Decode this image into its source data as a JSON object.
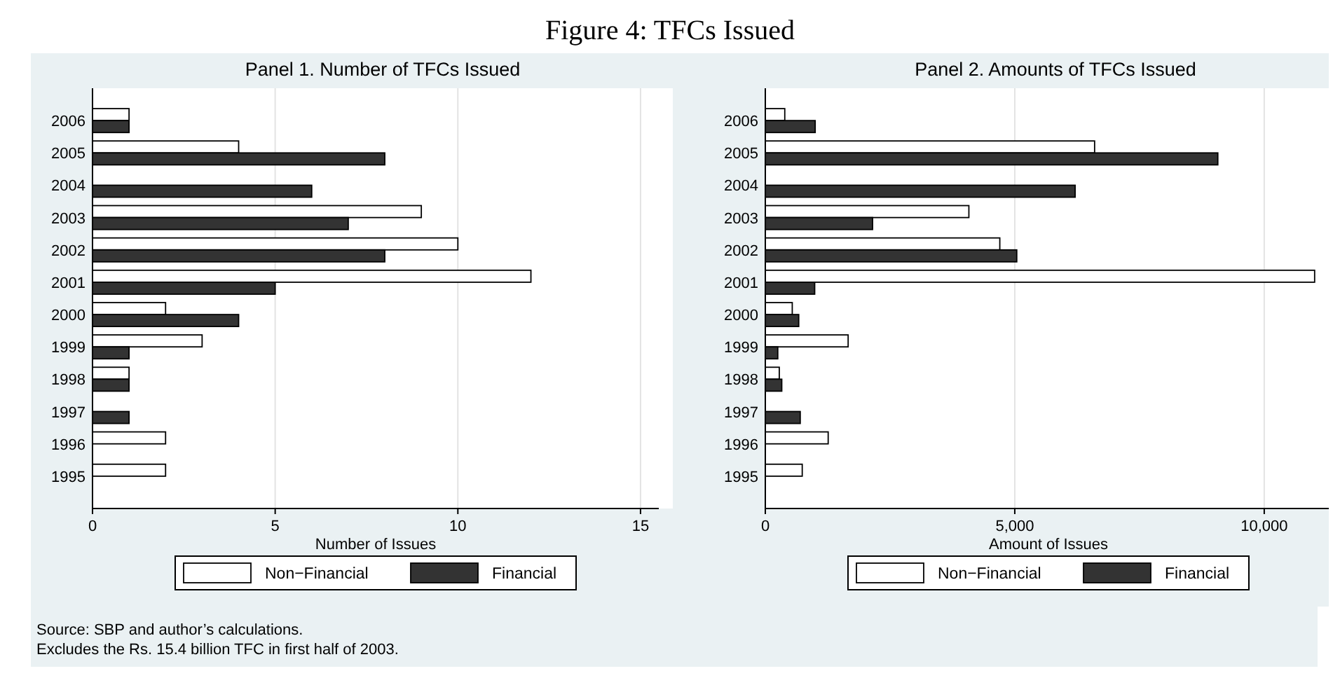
{
  "chart_data": [
    {
      "type": "bar",
      "orientation": "horizontal",
      "title": "Panel 1. Number of TFCs Issued",
      "xlabel": "Number of Issues",
      "categories": [
        "2006",
        "2005",
        "2004",
        "2003",
        "2002",
        "2001",
        "2000",
        "1999",
        "1998",
        "1997",
        "1996",
        "1995"
      ],
      "series": [
        {
          "name": "Non−Financial",
          "color": "#ffffff",
          "values": [
            1,
            4,
            null,
            9,
            10,
            12,
            2,
            3,
            1,
            null,
            2,
            2
          ]
        },
        {
          "name": "Financial",
          "color": "#333333",
          "values": [
            1,
            8,
            6,
            7,
            8,
            5,
            4,
            1,
            1,
            1,
            null,
            null
          ]
        }
      ],
      "xlim": [
        0,
        15.5
      ],
      "xticks": [
        0,
        5,
        10,
        15
      ],
      "grid": "x",
      "legend": "bottom",
      "annotations": [
        "Figure 4: TFCs Issued",
        "Source: SBP and author’s calculations.",
        "Excludes the Rs. 15.4 billion TFC in first half of 2003."
      ]
    },
    {
      "type": "bar",
      "orientation": "horizontal",
      "title": "Panel 2. Amounts of TFCs Issued",
      "xlabel": "Amount of Issues",
      "categories": [
        "2006",
        "2005",
        "2004",
        "2003",
        "2002",
        "2001",
        "2000",
        "1999",
        "1998",
        "1997",
        "1996",
        "1995"
      ],
      "series": [
        {
          "name": "Non−Financial",
          "color": "#ffffff",
          "values": [
            390,
            6600,
            null,
            4080,
            4700,
            11010,
            540,
            1660,
            280,
            null,
            1260,
            740
          ]
        },
        {
          "name": "Financial",
          "color": "#333333",
          "values": [
            1000,
            9070,
            6210,
            2150,
            5040,
            990,
            670,
            250,
            330,
            700,
            null,
            null
          ]
        }
      ],
      "xlim": [
        0,
        11350
      ],
      "xticks": [
        0,
        {
          "value": 5000,
          "label": "5,000"
        },
        {
          "value": 10000,
          "label": "10,000"
        }
      ],
      "grid": "x",
      "legend": "bottom"
    }
  ]
}
